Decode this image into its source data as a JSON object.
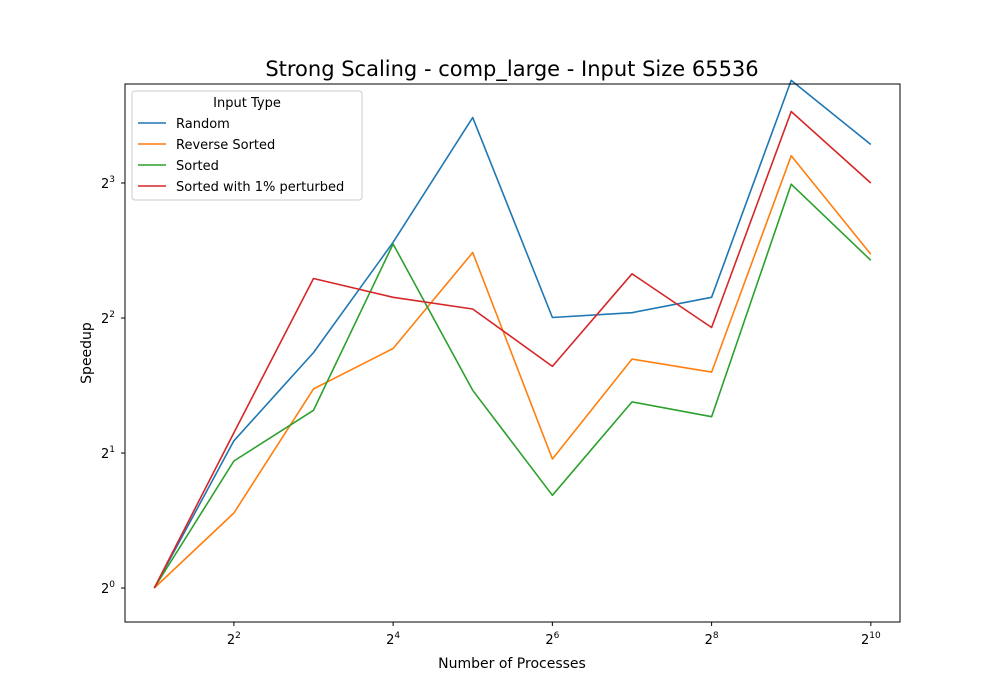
{
  "chart_data": {
    "type": "line",
    "title": "Strong Scaling - comp_large - Input Size 65536",
    "xlabel": "Number of Processes",
    "ylabel": "Speedup",
    "x_scale": "log2",
    "y_scale": "log2",
    "x": [
      2,
      4,
      8,
      16,
      32,
      64,
      128,
      256,
      512,
      1024
    ],
    "xlim": [
      1.55,
      1320
    ],
    "ylim": [
      0.84,
      13.3
    ],
    "x_ticks": [
      {
        "value": 4,
        "base": "2",
        "exp": "2"
      },
      {
        "value": 16,
        "base": "2",
        "exp": "4"
      },
      {
        "value": 64,
        "base": "2",
        "exp": "6"
      },
      {
        "value": 256,
        "base": "2",
        "exp": "8"
      },
      {
        "value": 1024,
        "base": "2",
        "exp": "10"
      }
    ],
    "y_ticks": [
      {
        "value": 1,
        "base": "2",
        "exp": "0"
      },
      {
        "value": 2,
        "base": "2",
        "exp": "1"
      },
      {
        "value": 4,
        "base": "2",
        "exp": "2"
      },
      {
        "value": 8,
        "base": "2",
        "exp": "3"
      }
    ],
    "legend": {
      "title": "Input Type",
      "position": "top-left"
    },
    "grid": false,
    "series": [
      {
        "name": "Random",
        "color": "#1f77b4",
        "values": [
          1,
          2.13,
          3.35,
          5.9,
          11.2,
          4.01,
          4.11,
          4.45,
          13.55,
          9.75
        ]
      },
      {
        "name": "Reverse Sorted",
        "color": "#ff7f0e",
        "values": [
          1,
          1.47,
          2.78,
          3.42,
          5.6,
          1.94,
          3.24,
          3.03,
          9.2,
          5.55
        ]
      },
      {
        "name": "Sorted",
        "color": "#2ca02c",
        "values": [
          1,
          1.92,
          2.49,
          5.85,
          2.76,
          1.61,
          2.6,
          2.41,
          7.95,
          5.38
        ]
      },
      {
        "name": "Sorted with 1% perturbed",
        "color": "#d62728",
        "values": [
          1,
          2.22,
          4.9,
          4.45,
          4.19,
          3.12,
          5.02,
          3.81,
          11.55,
          8.0
        ]
      }
    ]
  }
}
